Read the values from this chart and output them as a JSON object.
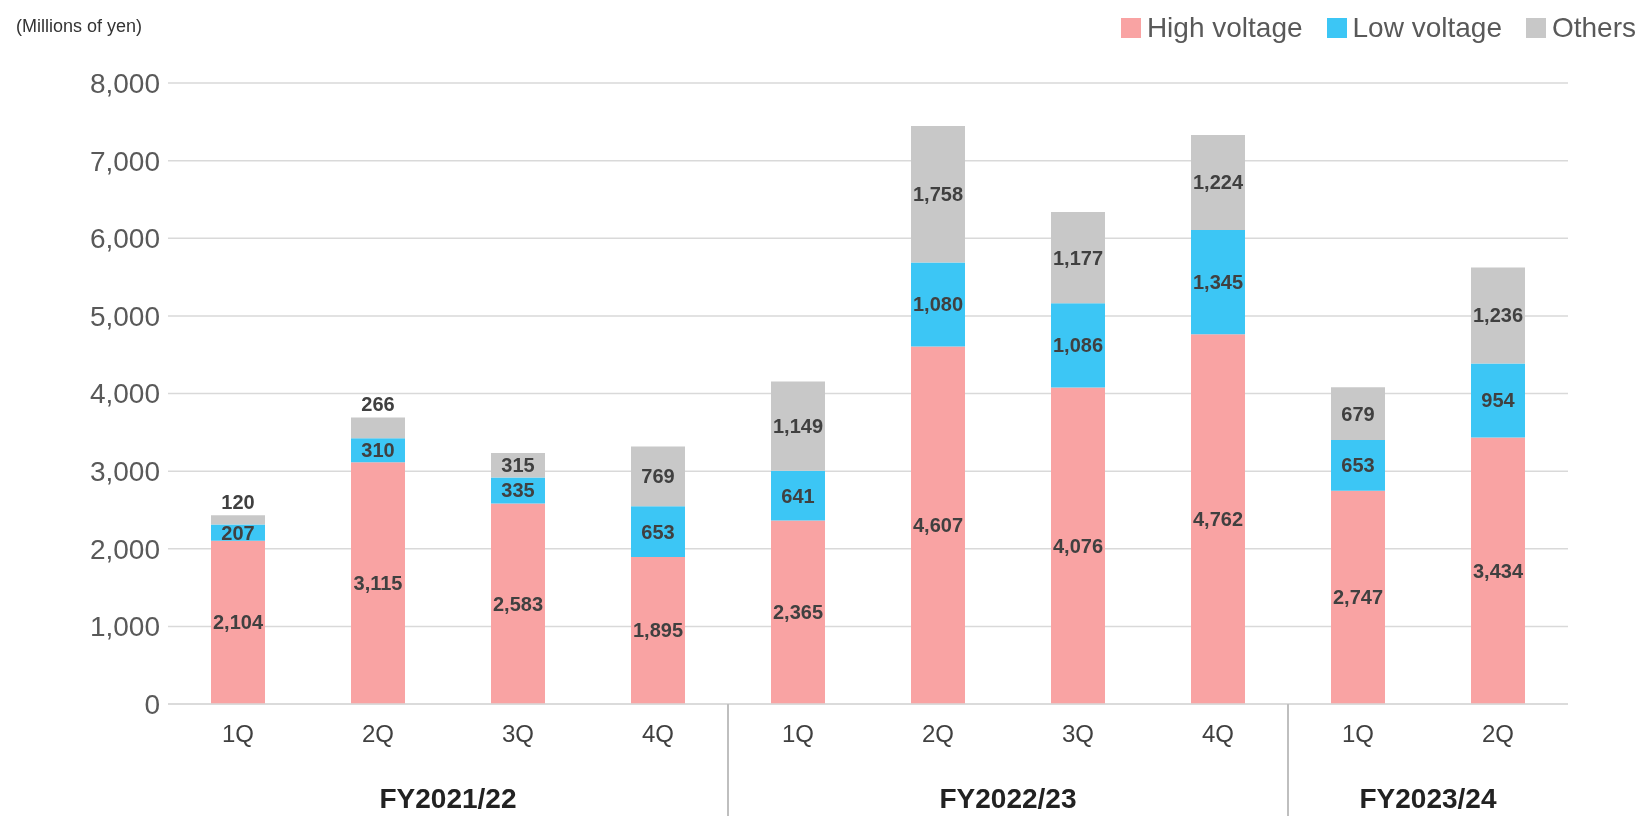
{
  "chart_data": {
    "type": "bar",
    "stacked": true,
    "ylabel": "(Millions of yen)",
    "categories": [
      "1Q",
      "2Q",
      "3Q",
      "4Q",
      "1Q",
      "2Q",
      "3Q",
      "4Q",
      "1Q",
      "2Q"
    ],
    "series": [
      {
        "name": "High voltage",
        "color": "#f9a3a3",
        "values": [
          2104,
          3115,
          2583,
          1895,
          2365,
          4607,
          4076,
          4762,
          2747,
          3434
        ],
        "value_labels": [
          "2,104",
          "3,115",
          "2,583",
          "1,895",
          "2,365",
          "4,607",
          "4,076",
          "4,762",
          "2,747",
          "3,434"
        ]
      },
      {
        "name": "Low voltage",
        "color": "#3cc6f5",
        "values": [
          207,
          310,
          335,
          653,
          641,
          1080,
          1086,
          1345,
          653,
          954
        ],
        "value_labels": [
          "207",
          "310",
          "335",
          "653",
          "641",
          "1,080",
          "1,086",
          "1,345",
          "653",
          "954"
        ]
      },
      {
        "name": "Others",
        "color": "#c8c8c8",
        "values": [
          120,
          266,
          315,
          769,
          1149,
          1758,
          1177,
          1224,
          679,
          1236
        ],
        "value_labels": [
          "120",
          "266",
          "315",
          "769",
          "1,149",
          "1,758",
          "1,177",
          "1,224",
          "679",
          "1,236"
        ]
      }
    ],
    "ylim": [
      0,
      8000
    ],
    "yticks": [
      {
        "value": 0,
        "label": "0"
      },
      {
        "value": 1000,
        "label": "1,000"
      },
      {
        "value": 2000,
        "label": "2,000"
      },
      {
        "value": 3000,
        "label": "3,000"
      },
      {
        "value": 4000,
        "label": "4,000"
      },
      {
        "value": 5000,
        "label": "5,000"
      },
      {
        "value": 6000,
        "label": "6,000"
      },
      {
        "value": 7000,
        "label": "7,000"
      },
      {
        "value": 8000,
        "label": "8,000"
      }
    ],
    "grid": "y",
    "legend": "top right",
    "annotations": [
      "FY2021/22",
      "FY2022/23",
      "FY2023/24"
    ]
  }
}
